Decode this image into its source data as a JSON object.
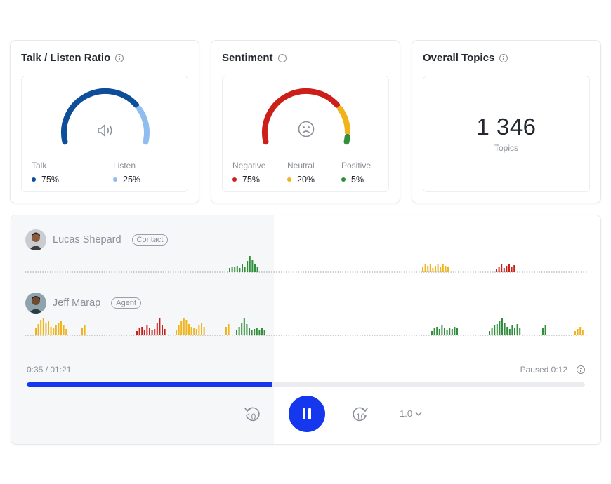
{
  "colors": {
    "talk": "#0d4d99",
    "listen": "#8fbdf0",
    "negative": "#cc1f1a",
    "neutral": "#f0b31a",
    "positive": "#2f8f3a",
    "accent": "#1537ee"
  },
  "talk_listen": {
    "title": "Talk / Listen Ratio",
    "icon": "speaker-icon",
    "talk_label": "Talk",
    "talk_value": "75%",
    "talk_pct": 75,
    "listen_label": "Listen",
    "listen_value": "25%",
    "listen_pct": 25
  },
  "sentiment": {
    "title": "Sentiment",
    "icon": "sad-face-icon",
    "negative_label": "Negative",
    "negative_value": "75%",
    "negative_pct": 75,
    "neutral_label": "Neutral",
    "neutral_value": "20%",
    "neutral_pct": 20,
    "positive_label": "Positive",
    "positive_value": "5%",
    "positive_pct": 5
  },
  "topics": {
    "title": "Overall Topics",
    "count": "1 346",
    "label": "Topics"
  },
  "player": {
    "speakers": [
      {
        "name": "Lucas Shepard",
        "tag": "Contact"
      },
      {
        "name": "Jeff Marap",
        "tag": "Agent"
      }
    ],
    "elapsed": "0:35 / 01:21",
    "status": "Paused 0:12",
    "progress": 0.44,
    "rewind_label": "10",
    "forward_label": "10",
    "speed": "1.0"
  }
}
